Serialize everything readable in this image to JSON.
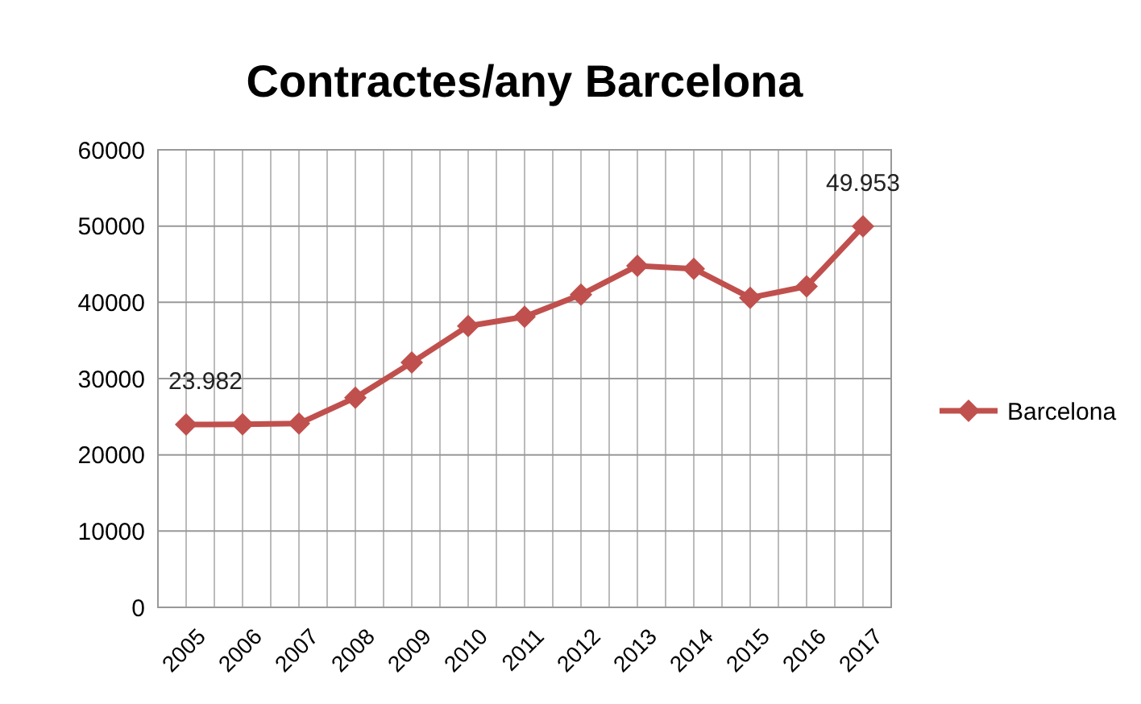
{
  "chart_data": {
    "type": "line",
    "title": "Contractes/any Barcelona",
    "categories": [
      "2005",
      "2006",
      "2007",
      "2008",
      "2009",
      "2010",
      "2011",
      "2012",
      "2013",
      "2014",
      "2015",
      "2016",
      "2017"
    ],
    "series": [
      {
        "name": "Barcelona",
        "color": "#c0504d",
        "values": [
          23982,
          24000,
          24100,
          27500,
          32100,
          36900,
          38100,
          41000,
          44800,
          44400,
          40600,
          42100,
          49953
        ],
        "value_labels": [
          "23.982",
          null,
          null,
          null,
          null,
          null,
          null,
          null,
          null,
          null,
          null,
          null,
          "49.953"
        ]
      }
    ],
    "ylim": [
      0,
      60000
    ],
    "yticks": [
      0,
      10000,
      20000,
      30000,
      40000,
      50000,
      60000
    ],
    "grid": true,
    "legend": "right",
    "marker": "diamond",
    "line_style": "solid"
  }
}
